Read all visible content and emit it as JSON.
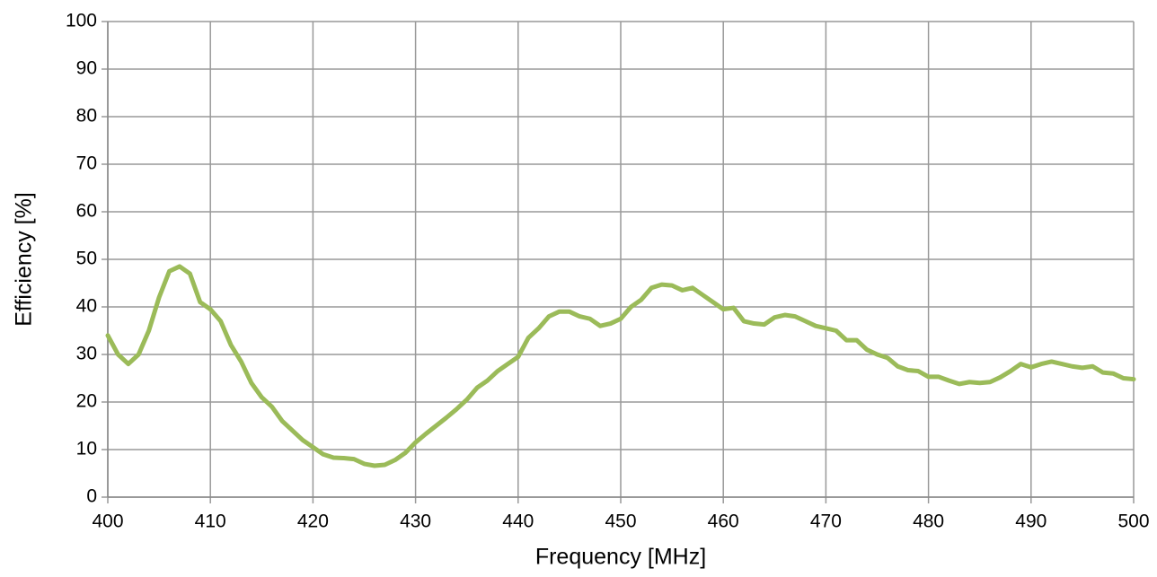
{
  "chart_data": {
    "type": "line",
    "xlabel": "Frequency [MHz]",
    "ylabel": "Efficiency [%]",
    "xlim": [
      400,
      500
    ],
    "xticks": [
      400,
      410,
      420,
      430,
      440,
      450,
      460,
      470,
      480,
      490,
      500
    ],
    "ylim": [
      0,
      100
    ],
    "yticks": [
      0,
      10,
      20,
      30,
      40,
      50,
      60,
      70,
      80,
      90,
      100
    ],
    "grid": true,
    "series": [
      {
        "color": "#9bbb59",
        "x": [
          400,
          401,
          402,
          403,
          404,
          405,
          406,
          407,
          408,
          409,
          410,
          411,
          412,
          413,
          414,
          415,
          416,
          417,
          418,
          419,
          420,
          421,
          422,
          423,
          424,
          425,
          426,
          427,
          428,
          429,
          430,
          431,
          432,
          433,
          434,
          435,
          436,
          437,
          438,
          439,
          440,
          441,
          442,
          443,
          444,
          445,
          446,
          447,
          448,
          449,
          450,
          451,
          452,
          453,
          454,
          455,
          456,
          457,
          458,
          459,
          460,
          461,
          462,
          463,
          464,
          465,
          466,
          467,
          468,
          469,
          470,
          471,
          472,
          473,
          474,
          475,
          476,
          477,
          478,
          479,
          480,
          481,
          482,
          483,
          484,
          485,
          486,
          487,
          488,
          489,
          490,
          491,
          492,
          493,
          494,
          495,
          496,
          497,
          498,
          499,
          500
        ],
        "values": [
          34,
          30,
          28,
          30,
          35,
          42,
          47.5,
          48.5,
          47,
          41,
          39.5,
          37,
          32,
          28.5,
          24,
          21,
          19,
          16,
          14,
          12,
          10.5,
          9,
          8.3,
          8.2,
          8,
          7,
          6.6,
          6.8,
          7.8,
          9.3,
          11.5,
          13.3,
          15,
          16.7,
          18.5,
          20.5,
          23,
          24.5,
          26.5,
          28,
          29.5,
          33.5,
          35.5,
          38,
          39,
          39,
          38,
          37.5,
          36,
          36.5,
          37.5,
          40,
          41.5,
          44,
          44.7,
          44.5,
          43.5,
          44,
          42.5,
          41,
          39.5,
          39.8,
          37,
          36.5,
          36.3,
          37.8,
          38.3,
          38,
          37,
          36,
          35.5,
          35,
          33,
          33,
          31,
          30,
          29.3,
          27.5,
          26.7,
          26.5,
          25.3,
          25.3,
          24.5,
          23.8,
          24.2,
          24,
          24.2,
          25.2,
          26.5,
          28,
          27.3,
          28,
          28.5,
          28,
          27.5,
          27.2,
          27.5,
          26.2,
          26,
          25,
          24.8
        ]
      }
    ]
  }
}
